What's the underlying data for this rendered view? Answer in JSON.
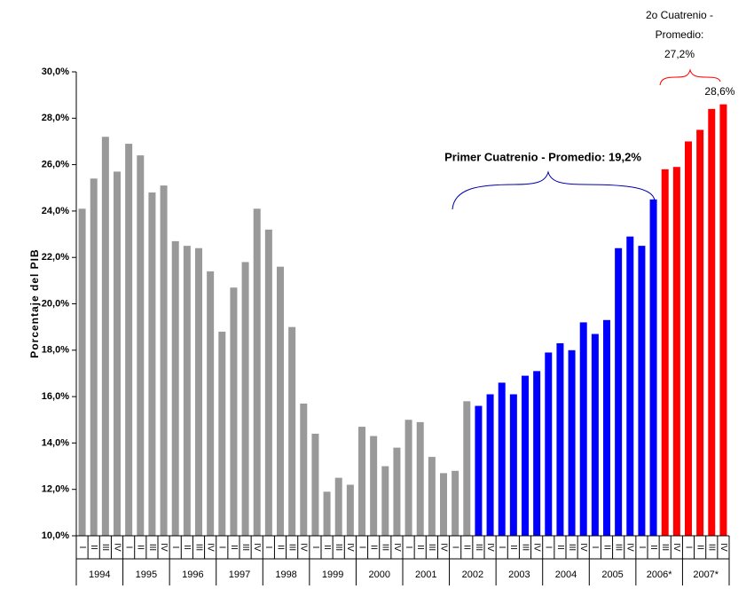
{
  "chart_data": {
    "type": "bar",
    "y_label": "Porcentaje del PIB",
    "ylim": [
      10,
      30
    ],
    "yticks": [
      {
        "value": 10,
        "label": "10,0%"
      },
      {
        "value": 12,
        "label": "12,0%"
      },
      {
        "value": 14,
        "label": "14,0%"
      },
      {
        "value": 16,
        "label": "16,0%"
      },
      {
        "value": 18,
        "label": "18,0%"
      },
      {
        "value": 20,
        "label": "20,0%"
      },
      {
        "value": 22,
        "label": "22,0%"
      },
      {
        "value": 24,
        "label": "24,0%"
      },
      {
        "value": 26,
        "label": "26,0%"
      },
      {
        "value": 28,
        "label": "28,0%"
      },
      {
        "value": 30,
        "label": "30,0%"
      }
    ],
    "categories": [
      "I",
      "II",
      "III",
      "IV",
      "I",
      "II",
      "III",
      "IV",
      "I",
      "II",
      "III",
      "IV",
      "I",
      "II",
      "III",
      "IV",
      "I",
      "II",
      "III",
      "IV",
      "I",
      "II",
      "III",
      "IV",
      "I",
      "II",
      "III",
      "IV",
      "I",
      "II",
      "III",
      "IV",
      "I",
      "II",
      "III",
      "IV",
      "I",
      "II",
      "III",
      "IV",
      "I",
      "II",
      "III",
      "IV",
      "I",
      "II",
      "III",
      "IV",
      "I",
      "II",
      "III",
      "IV",
      "I",
      "II",
      "III",
      "IV"
    ],
    "groups": [
      "1994",
      "1995",
      "1996",
      "1997",
      "1998",
      "1999",
      "2000",
      "2001",
      "2002",
      "2003",
      "2004",
      "2005",
      "2006*",
      "2007*"
    ],
    "values": [
      24.1,
      25.4,
      27.2,
      25.7,
      26.9,
      26.4,
      24.8,
      25.1,
      22.7,
      22.5,
      22.4,
      21.4,
      18.8,
      20.7,
      21.8,
      24.1,
      23.2,
      21.6,
      19.0,
      15.7,
      14.4,
      11.9,
      12.5,
      12.2,
      14.7,
      14.3,
      13.0,
      13.8,
      15.0,
      14.9,
      13.4,
      12.7,
      12.8,
      15.8,
      15.6,
      16.1,
      16.6,
      16.1,
      16.9,
      17.1,
      17.9,
      18.3,
      18.0,
      19.2,
      18.7,
      19.3,
      22.4,
      22.9,
      22.5,
      24.5,
      25.8,
      25.9,
      27.0,
      27.5,
      28.4,
      28.6
    ],
    "value_labels": [
      null,
      null,
      null,
      null,
      null,
      null,
      null,
      null,
      null,
      null,
      null,
      null,
      null,
      null,
      null,
      null,
      null,
      null,
      null,
      null,
      null,
      null,
      null,
      null,
      null,
      null,
      null,
      null,
      null,
      null,
      null,
      null,
      null,
      null,
      null,
      null,
      null,
      null,
      null,
      null,
      null,
      null,
      null,
      null,
      null,
      null,
      null,
      null,
      null,
      null,
      null,
      null,
      null,
      null,
      null,
      "28,6%"
    ],
    "colors": [
      "#999999",
      "#999999",
      "#999999",
      "#999999",
      "#999999",
      "#999999",
      "#999999",
      "#999999",
      "#999999",
      "#999999",
      "#999999",
      "#999999",
      "#999999",
      "#999999",
      "#999999",
      "#999999",
      "#999999",
      "#999999",
      "#999999",
      "#999999",
      "#999999",
      "#999999",
      "#999999",
      "#999999",
      "#999999",
      "#999999",
      "#999999",
      "#999999",
      "#999999",
      "#999999",
      "#999999",
      "#999999",
      "#999999",
      "#999999",
      "#0000ff",
      "#0000ff",
      "#0000ff",
      "#0000ff",
      "#0000ff",
      "#0000ff",
      "#0000ff",
      "#0000ff",
      "#0000ff",
      "#0000ff",
      "#0000ff",
      "#0000ff",
      "#0000ff",
      "#0000ff",
      "#0000ff",
      "#0000ff",
      "#ff0000",
      "#ff0000",
      "#ff0000",
      "#ff0000",
      "#ff0000",
      "#ff0000"
    ],
    "annotation_1": "Primer Cuatrenio - Promedio: 19,2%",
    "annotation_2": [
      "2o Cuatrenio -",
      "Promedio:",
      "27,2%"
    ]
  }
}
